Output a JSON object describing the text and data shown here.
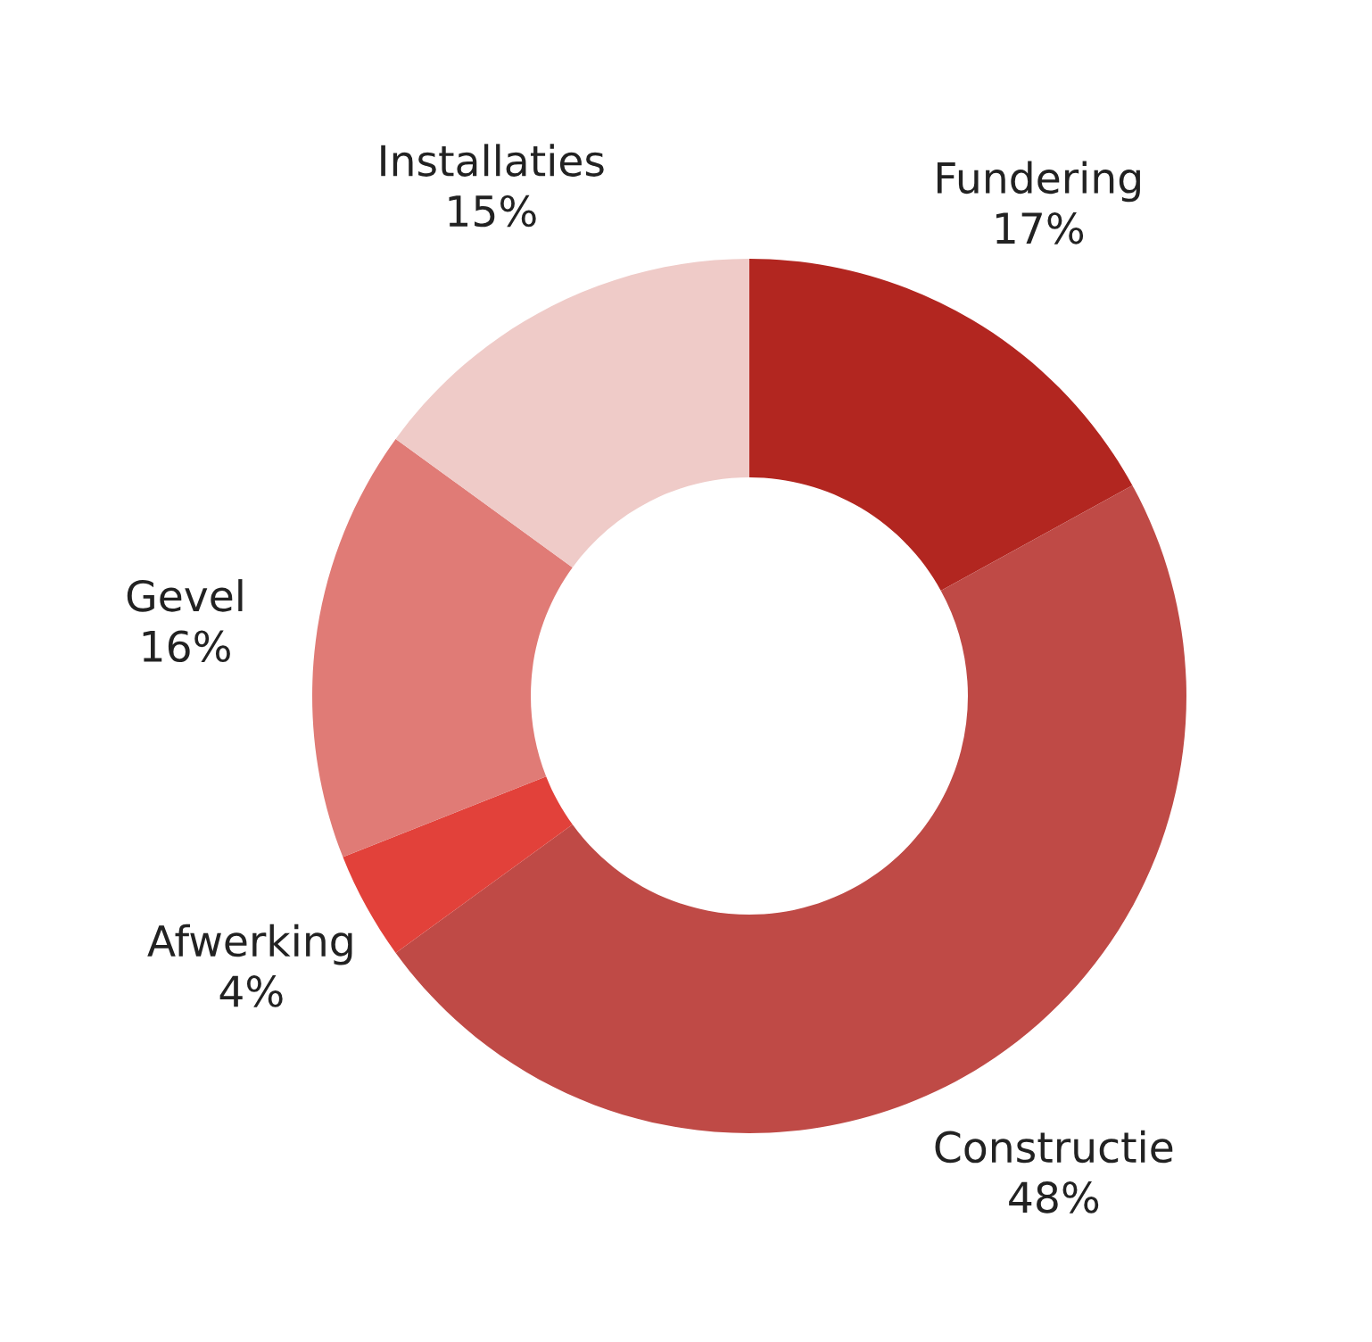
{
  "chart_data": {
    "type": "donut",
    "categories": [
      "Fundering",
      "Constructie",
      "Afwerking",
      "Gevel",
      "Installaties"
    ],
    "values": [
      17,
      48,
      4,
      16,
      15
    ],
    "colors": [
      "#b22620",
      "#bf4a46",
      "#e2413a",
      "#e07b76",
      "#efcbc8"
    ],
    "value_labels": [
      "17%",
      "48%",
      "4%",
      "16%",
      "15%"
    ]
  }
}
